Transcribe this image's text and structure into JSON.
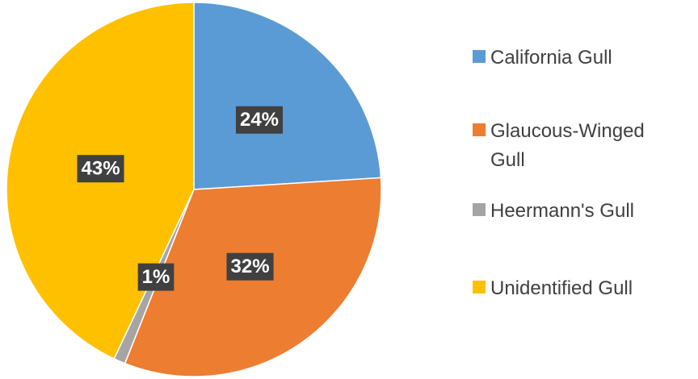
{
  "chart_data": {
    "type": "pie",
    "categories": [
      "California Gull",
      "Glaucous-Winged Gull",
      "Heermann's Gull",
      "Unidentified Gull"
    ],
    "values": [
      24,
      32,
      1,
      43
    ],
    "value_labels": [
      "24%",
      "32%",
      "1%",
      "43%"
    ],
    "colors": [
      "#5b9bd5",
      "#ed7d31",
      "#a5a5a5",
      "#ffc000"
    ],
    "legend": "right"
  }
}
